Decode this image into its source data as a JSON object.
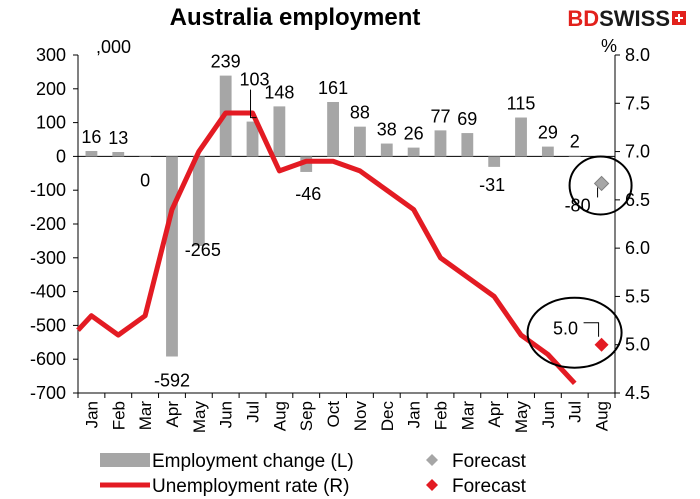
{
  "title": "Australia employment",
  "brand": {
    "left": "BD",
    "right": "SWISS"
  },
  "chart_data": {
    "type": "bar",
    "categories": [
      "Jan",
      "Feb",
      "Mar",
      "Apr",
      "May",
      "Jun",
      "Jul",
      "Aug",
      "Sep",
      "Oct",
      "Nov",
      "Dec",
      "Jan",
      "Feb",
      "Mar",
      "Apr",
      "May",
      "Jun",
      "Jul",
      "Aug"
    ],
    "left_axis": {
      "unit_label": ",000",
      "ylim": [
        -700,
        300
      ],
      "ticks": [
        300,
        200,
        100,
        0,
        -100,
        -200,
        -300,
        -400,
        -500,
        -600,
        -700
      ]
    },
    "right_axis": {
      "unit_label": "%",
      "ylim": [
        4.5,
        8.0
      ],
      "ticks": [
        "8.0",
        "7.5",
        "7.0",
        "6.5",
        "6.0",
        "5.5",
        "5.0",
        "4.5"
      ]
    },
    "series": [
      {
        "name": "Employment change (L)",
        "type": "bar",
        "axis": "left",
        "color": "#a6a6a6",
        "values": [
          16,
          13,
          0,
          -592,
          -265,
          239,
          103,
          148,
          -46,
          161,
          88,
          38,
          26,
          77,
          69,
          -31,
          115,
          29,
          2,
          null
        ],
        "labels": [
          "16",
          "13",
          "0",
          "-592",
          "-265",
          "239",
          "103",
          "148",
          "-46",
          "161",
          "88",
          "38",
          "26",
          "77",
          "69",
          "-31",
          "115",
          "29",
          "2",
          ""
        ]
      },
      {
        "name": "Unemployment rate (R)",
        "type": "line",
        "axis": "right",
        "color": "#e31b23",
        "values": [
          5.3,
          5.1,
          5.3,
          6.4,
          7.0,
          7.4,
          7.4,
          6.8,
          6.9,
          6.9,
          6.8,
          6.6,
          6.4,
          5.9,
          5.7,
          5.5,
          5.1,
          4.9,
          4.6,
          null
        ]
      },
      {
        "name": "Forecast",
        "type": "marker",
        "axis": "left",
        "color": "#a6a6a6",
        "category": "Aug",
        "value": -80,
        "label": "-80"
      },
      {
        "name": "Forecast",
        "type": "marker",
        "axis": "right",
        "color": "#e31b23",
        "category": "Aug",
        "value": 5.0,
        "label": "5.0"
      }
    ],
    "legend": {
      "placement": "bottom",
      "items": [
        {
          "label": "Employment change (L)",
          "swatch": "bar",
          "color": "#a6a6a6"
        },
        {
          "label": "Forecast",
          "swatch": "diamond",
          "color": "#a6a6a6"
        },
        {
          "label": "Unemployment rate (R)",
          "swatch": "line",
          "color": "#e31b23"
        },
        {
          "label": "Forecast",
          "swatch": "diamond",
          "color": "#e31b23"
        }
      ]
    },
    "grid": false
  }
}
